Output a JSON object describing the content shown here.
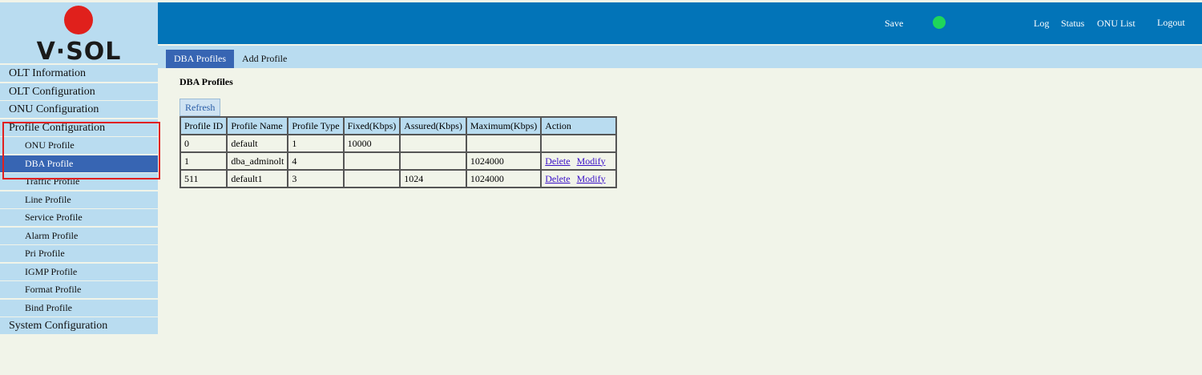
{
  "logo": {
    "text": "V·SOL"
  },
  "header": {
    "save": "Save",
    "links": [
      "Log",
      "Status",
      "ONU List",
      "Logout"
    ]
  },
  "sidebar": {
    "items": [
      {
        "label": "OLT Information",
        "level": 1
      },
      {
        "label": "OLT Configuration",
        "level": 1
      },
      {
        "label": "ONU Configuration",
        "level": 1
      },
      {
        "label": "Profile Configuration",
        "level": 1
      },
      {
        "label": "ONU Profile",
        "level": 2
      },
      {
        "label": "DBA Profile",
        "level": 2,
        "active": true
      },
      {
        "label": "Traffic Profile",
        "level": 2
      },
      {
        "label": "Line Profile",
        "level": 2
      },
      {
        "label": "Service Profile",
        "level": 2
      },
      {
        "label": "Alarm Profile",
        "level": 2
      },
      {
        "label": "Pri Profile",
        "level": 2
      },
      {
        "label": "IGMP Profile",
        "level": 2
      },
      {
        "label": "Format Profile",
        "level": 2
      },
      {
        "label": "Bind Profile",
        "level": 2
      },
      {
        "label": "System Configuration",
        "level": 1
      }
    ]
  },
  "tabs": [
    "DBA Profiles",
    "Add Profile"
  ],
  "content": {
    "title": "DBA Profiles",
    "refresh": "Refresh"
  },
  "table": {
    "headers": [
      "Profile ID",
      "Profile Name",
      "Profile Type",
      "Fixed(Kbps)",
      "Assured(Kbps)",
      "Maximum(Kbps)",
      "Action"
    ],
    "rows": [
      [
        "0",
        "default",
        "1",
        "10000",
        null,
        null,
        null
      ],
      [
        "1",
        "dba_adminolt",
        "4",
        null,
        null,
        "1024000",
        [
          "Delete",
          "Modify"
        ]
      ],
      [
        "511",
        "default1",
        "3",
        null,
        "1024",
        "1024000",
        [
          "Delete",
          "Modify"
        ]
      ]
    ]
  }
}
